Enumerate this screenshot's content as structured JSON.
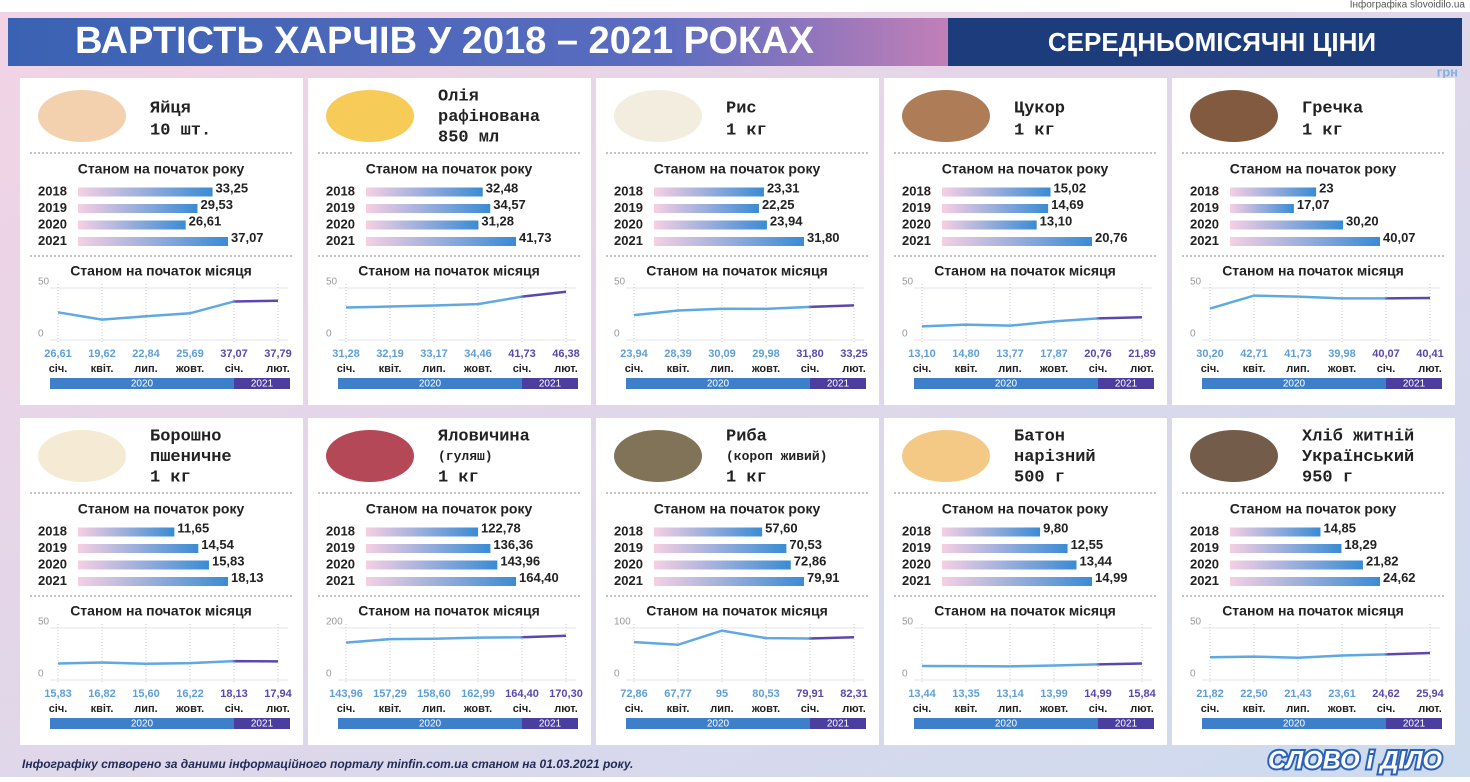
{
  "header": {
    "title": "ВАРТІСТЬ ХАРЧІВ У 2018 – 2021 РОКАХ",
    "subtitle": "СЕРЕДНЬОМІСЯЧНІ ЦІНИ",
    "unit": "грн",
    "credit": "Інфографіка slovoidilo.ua"
  },
  "footer": {
    "note": "Інфографіку створено за даними інформаційного порталу minfin.com.ua станом на 01.03.2021 року.",
    "logo": "СЛОВО і ДІЛО"
  },
  "panels": [
    {
      "name": [
        "Яйця"
      ],
      "unit": "10 шт."
    },
    {
      "name": [
        "Олія",
        "рафінована"
      ],
      "unit": "850 мл"
    },
    {
      "name": [
        "Рис"
      ],
      "unit": "1 кг"
    },
    {
      "name": [
        "Цукор"
      ],
      "unit": "1 кг"
    },
    {
      "name": [
        "Гречка"
      ],
      "unit": "1 кг"
    },
    {
      "name": [
        "Борошно",
        "пшеничне"
      ],
      "unit": "1 кг"
    },
    {
      "name": [
        "Яловичина",
        "(гуляш)"
      ],
      "unit": "1 кг"
    },
    {
      "name": [
        "Риба",
        "(короп живий)"
      ],
      "unit": "1 кг"
    },
    {
      "name": [
        "Батон",
        "нарізний"
      ],
      "unit": "500 г"
    },
    {
      "name": [
        "Хліб житній",
        "Український"
      ],
      "unit": "950 г"
    }
  ],
  "chart_data": [
    {
      "type": "hbar",
      "title": "Станом на початок року",
      "categories": [
        "2018",
        "2019",
        "2020",
        "2021"
      ],
      "values": [
        33.25,
        29.53,
        26.61,
        37.07
      ],
      "value_labels": [
        "33,25",
        "29,53",
        "26,61",
        "37,07"
      ]
    },
    {
      "type": "line",
      "title": "Станом на початок місяця",
      "categories": [
        "січ.",
        "квіт.",
        "лип.",
        "жовт.",
        "січ.",
        "лют."
      ],
      "values": [
        26.61,
        19.62,
        22.84,
        25.69,
        37.07,
        37.79
      ],
      "value_labels": [
        "26,61",
        "19,62",
        "22,84",
        "25,69",
        "37,07",
        "37,79"
      ],
      "ylim": [
        0,
        50
      ],
      "yticks": [
        0,
        50
      ],
      "period_labels": [
        "2020",
        "2021"
      ],
      "grid": true
    },
    {
      "type": "hbar",
      "title": "Станом на початок року",
      "categories": [
        "2018",
        "2019",
        "2020",
        "2021"
      ],
      "values": [
        32.48,
        34.57,
        31.28,
        41.73
      ],
      "value_labels": [
        "32,48",
        "34,57",
        "31,28",
        "41,73"
      ]
    },
    {
      "type": "line",
      "title": "Станом на початок місяця",
      "categories": [
        "січ.",
        "квіт.",
        "лип.",
        "жовт.",
        "січ.",
        "лют."
      ],
      "values": [
        31.28,
        32.19,
        33.17,
        34.46,
        41.73,
        46.38
      ],
      "value_labels": [
        "31,28",
        "32,19",
        "33,17",
        "34,46",
        "41,73",
        "46,38"
      ],
      "ylim": [
        0,
        50
      ],
      "yticks": [
        0,
        50
      ],
      "period_labels": [
        "2020",
        "2021"
      ],
      "grid": true
    },
    {
      "type": "hbar",
      "title": "Станом на початок року",
      "categories": [
        "2018",
        "2019",
        "2020",
        "2021"
      ],
      "values": [
        23.31,
        22.25,
        23.94,
        31.8
      ],
      "value_labels": [
        "23,31",
        "22,25",
        "23,94",
        "31,80"
      ]
    },
    {
      "type": "line",
      "title": "Станом на початок місяця",
      "categories": [
        "січ.",
        "квіт.",
        "лип.",
        "жовт.",
        "січ.",
        "лют."
      ],
      "values": [
        23.94,
        28.39,
        30.09,
        29.98,
        31.8,
        33.25
      ],
      "value_labels": [
        "23,94",
        "28,39",
        "30,09",
        "29,98",
        "31,80",
        "33,25"
      ],
      "ylim": [
        0,
        50
      ],
      "yticks": [
        0,
        50
      ],
      "period_labels": [
        "2020",
        "2021"
      ],
      "grid": true
    },
    {
      "type": "hbar",
      "title": "Станом на початок року",
      "categories": [
        "2018",
        "2019",
        "2020",
        "2021"
      ],
      "values": [
        15.02,
        14.69,
        13.1,
        20.76
      ],
      "value_labels": [
        "15,02",
        "14,69",
        "13,10",
        "20,76"
      ]
    },
    {
      "type": "line",
      "title": "Станом на початок місяця",
      "categories": [
        "січ.",
        "квіт.",
        "лип.",
        "жовт.",
        "січ.",
        "лют."
      ],
      "values": [
        13.1,
        14.8,
        13.77,
        17.87,
        20.76,
        21.89
      ],
      "value_labels": [
        "13,10",
        "14,80",
        "13,77",
        "17,87",
        "20,76",
        "21,89"
      ],
      "ylim": [
        0,
        50
      ],
      "yticks": [
        0,
        50
      ],
      "period_labels": [
        "2020",
        "2021"
      ],
      "grid": true
    },
    {
      "type": "hbar",
      "title": "Станом на початок року",
      "categories": [
        "2018",
        "2019",
        "2020",
        "2021"
      ],
      "values": [
        23,
        17.07,
        30.2,
        40.07
      ],
      "value_labels": [
        "23",
        "17,07",
        "30,20",
        "40,07"
      ]
    },
    {
      "type": "line",
      "title": "Станом на початок місяця",
      "categories": [
        "січ.",
        "квіт.",
        "лип.",
        "жовт.",
        "січ.",
        "лют."
      ],
      "values": [
        30.2,
        42.71,
        41.73,
        39.98,
        40.07,
        40.41
      ],
      "value_labels": [
        "30,20",
        "42,71",
        "41,73",
        "39,98",
        "40,07",
        "40,41"
      ],
      "ylim": [
        0,
        50
      ],
      "yticks": [
        0,
        50
      ],
      "period_labels": [
        "2020",
        "2021"
      ],
      "grid": true
    },
    {
      "type": "hbar",
      "title": "Станом на початок року",
      "categories": [
        "2018",
        "2019",
        "2020",
        "2021"
      ],
      "values": [
        11.65,
        14.54,
        15.83,
        18.13
      ],
      "value_labels": [
        "11,65",
        "14,54",
        "15,83",
        "18,13"
      ]
    },
    {
      "type": "line",
      "title": "Станом на початок місяця",
      "categories": [
        "січ.",
        "квіт.",
        "лип.",
        "жовт.",
        "січ.",
        "лют."
      ],
      "values": [
        15.83,
        16.82,
        15.6,
        16.22,
        18.13,
        17.94
      ],
      "value_labels": [
        "15,83",
        "16,82",
        "15,60",
        "16,22",
        "18,13",
        "17,94"
      ],
      "ylim": [
        0,
        50
      ],
      "yticks": [
        0,
        50
      ],
      "period_labels": [
        "2020",
        "2021"
      ],
      "grid": true
    },
    {
      "type": "hbar",
      "title": "Станом на початок року",
      "categories": [
        "2018",
        "2019",
        "2020",
        "2021"
      ],
      "values": [
        122.78,
        136.36,
        143.96,
        164.4
      ],
      "value_labels": [
        "122,78",
        "136,36",
        "143,96",
        "164,40"
      ]
    },
    {
      "type": "line",
      "title": "Станом на початок місяця",
      "categories": [
        "січ.",
        "квіт.",
        "лип.",
        "жовт.",
        "січ.",
        "лют."
      ],
      "values": [
        143.96,
        157.29,
        158.6,
        162.99,
        164.4,
        170.3
      ],
      "value_labels": [
        "143,96",
        "157,29",
        "158,60",
        "162,99",
        "164,40",
        "170,30"
      ],
      "ylim": [
        0,
        200
      ],
      "yticks": [
        0,
        200
      ],
      "period_labels": [
        "2020",
        "2021"
      ],
      "grid": true
    },
    {
      "type": "hbar",
      "title": "Станом на початок року",
      "categories": [
        "2018",
        "2019",
        "2020",
        "2021"
      ],
      "values": [
        57.6,
        70.53,
        72.86,
        79.91
      ],
      "value_labels": [
        "57,60",
        "70,53",
        "72,86",
        "79,91"
      ]
    },
    {
      "type": "line",
      "title": "Станом на початок місяця",
      "categories": [
        "січ.",
        "квіт.",
        "лип.",
        "жовт.",
        "січ.",
        "лют."
      ],
      "values": [
        72.86,
        67.77,
        95,
        80.53,
        79.91,
        82.31
      ],
      "value_labels": [
        "72,86",
        "67,77",
        "95",
        "80,53",
        "79,91",
        "82,31"
      ],
      "ylim": [
        0,
        100
      ],
      "yticks": [
        0,
        100
      ],
      "period_labels": [
        "2020",
        "2021"
      ],
      "grid": true
    },
    {
      "type": "hbar",
      "title": "Станом на початок року",
      "categories": [
        "2018",
        "2019",
        "2020",
        "2021"
      ],
      "values": [
        9.8,
        12.55,
        13.44,
        14.99
      ],
      "value_labels": [
        "9,80",
        "12,55",
        "13,44",
        "14,99"
      ]
    },
    {
      "type": "line",
      "title": "Станом на початок місяця",
      "categories": [
        "січ.",
        "квіт.",
        "лип.",
        "жовт.",
        "січ.",
        "лют."
      ],
      "values": [
        13.44,
        13.35,
        13.14,
        13.99,
        14.99,
        15.84
      ],
      "value_labels": [
        "13,44",
        "13,35",
        "13,14",
        "13,99",
        "14,99",
        "15,84"
      ],
      "ylim": [
        0,
        50
      ],
      "yticks": [
        0,
        50
      ],
      "period_labels": [
        "2020",
        "2021"
      ],
      "grid": true
    },
    {
      "type": "hbar",
      "title": "Станом на початок року",
      "categories": [
        "2018",
        "2019",
        "2020",
        "2021"
      ],
      "values": [
        14.85,
        18.29,
        21.82,
        24.62
      ],
      "value_labels": [
        "14,85",
        "18,29",
        "21,82",
        "24,62"
      ]
    },
    {
      "type": "line",
      "title": "Станом на початок місяця",
      "categories": [
        "січ.",
        "квіт.",
        "лип.",
        "жовт.",
        "січ.",
        "лют."
      ],
      "values": [
        21.82,
        22.5,
        21.43,
        23.61,
        24.62,
        25.94
      ],
      "value_labels": [
        "21,82",
        "22,50",
        "21,43",
        "23,61",
        "24,62",
        "25,94"
      ],
      "ylim": [
        0,
        50
      ],
      "yticks": [
        0,
        50
      ],
      "period_labels": [
        "2020",
        "2021"
      ],
      "grid": true
    }
  ]
}
